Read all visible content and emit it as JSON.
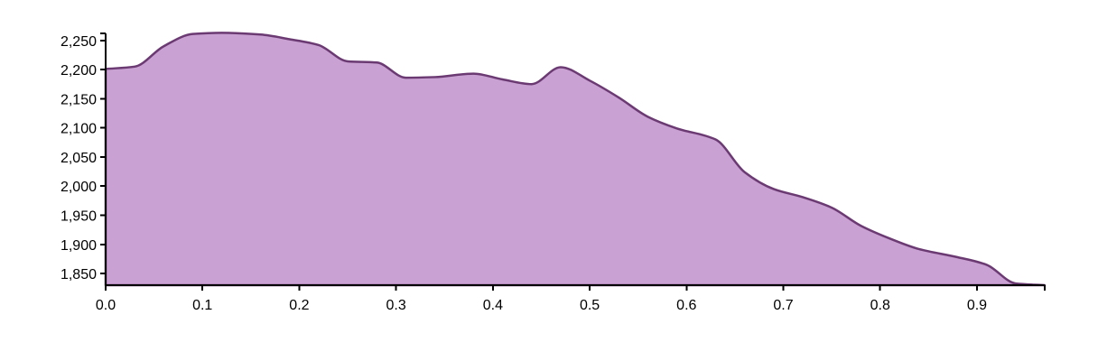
{
  "chart_data": {
    "type": "area",
    "title": "",
    "xlabel": "",
    "ylabel": "",
    "xlim": [
      0,
      0.97
    ],
    "ylim": [
      1830,
      2262
    ],
    "x_ticks": [
      {
        "value": 0.0,
        "label": "0.0"
      },
      {
        "value": 0.1,
        "label": "0.1"
      },
      {
        "value": 0.2,
        "label": "0.2"
      },
      {
        "value": 0.3,
        "label": "0.3"
      },
      {
        "value": 0.4,
        "label": "0.4"
      },
      {
        "value": 0.5,
        "label": "0.5"
      },
      {
        "value": 0.6,
        "label": "0.6"
      },
      {
        "value": 0.7,
        "label": "0.7"
      },
      {
        "value": 0.8,
        "label": "0.8"
      },
      {
        "value": 0.9,
        "label": "0.9"
      }
    ],
    "y_ticks": [
      {
        "value": 1850,
        "label": "1,850"
      },
      {
        "value": 1900,
        "label": "1,900"
      },
      {
        "value": 1950,
        "label": "1,950"
      },
      {
        "value": 2000,
        "label": "2,000"
      },
      {
        "value": 2050,
        "label": "2,050"
      },
      {
        "value": 2100,
        "label": "2,100"
      },
      {
        "value": 2150,
        "label": "2,150"
      },
      {
        "value": 2200,
        "label": "2,200"
      },
      {
        "value": 2250,
        "label": "2,250"
      }
    ],
    "grid": false,
    "colors": {
      "fill": "#c9a1d2",
      "stroke": "#6b3a73"
    },
    "series": [
      {
        "x": [
          0.0,
          0.03,
          0.06,
          0.09,
          0.12,
          0.16,
          0.19,
          0.22,
          0.25,
          0.28,
          0.31,
          0.34,
          0.38,
          0.41,
          0.44,
          0.47,
          0.5,
          0.53,
          0.56,
          0.59,
          0.63,
          0.66,
          0.69,
          0.72,
          0.75,
          0.78,
          0.81,
          0.84,
          0.88,
          0.91,
          0.94,
          0.97
        ],
        "values": [
          2201,
          2205,
          2240,
          2261,
          2263,
          2260,
          2252,
          2242,
          2214,
          2212,
          2186,
          2187,
          2193,
          2183,
          2175,
          2204,
          2181,
          2152,
          2119,
          2099,
          2080,
          2024,
          1995,
          1981,
          1963,
          1932,
          1910,
          1892,
          1878,
          1865,
          1833,
          1830
        ]
      }
    ]
  }
}
